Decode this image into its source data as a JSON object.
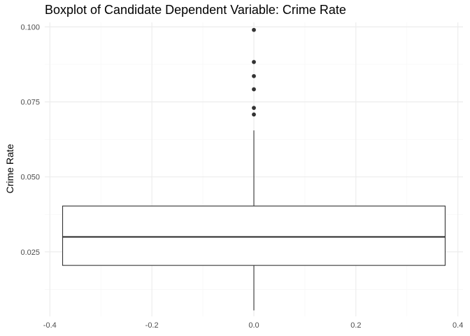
{
  "chart_data": {
    "type": "boxplot",
    "title": "Boxplot of Candidate Dependent Variable: Crime Rate",
    "xlabel": "",
    "ylabel": "Crime Rate",
    "xlim": [
      -0.41,
      0.41
    ],
    "ylim": [
      0.0035,
      0.1015
    ],
    "x_ticks": [
      -0.4,
      -0.2,
      0.0,
      0.2,
      0.4
    ],
    "x_tick_labels": [
      "-0.4",
      "-0.2",
      "0.0",
      "0.2",
      "0.4"
    ],
    "y_ticks": [
      0.025,
      0.05,
      0.075,
      0.1
    ],
    "y_tick_labels": [
      "0.025",
      "0.050",
      "0.075",
      "0.100"
    ],
    "grid": true,
    "box": {
      "x_center": 0.0,
      "width": 0.75,
      "q1": 0.0205,
      "median": 0.03,
      "q3": 0.0403,
      "whisker_low": 0.0055,
      "whisker_high": 0.0655
    },
    "outliers": [
      0.0708,
      0.073,
      0.0792,
      0.0836,
      0.0883,
      0.099
    ],
    "colors": {
      "box_fill": "#ffffff",
      "box_stroke": "#333333",
      "outlier": "#333333",
      "grid_major": "#ebebeb",
      "grid_minor": "#f5f5f5",
      "tick_text": "#4d4d4d"
    }
  }
}
